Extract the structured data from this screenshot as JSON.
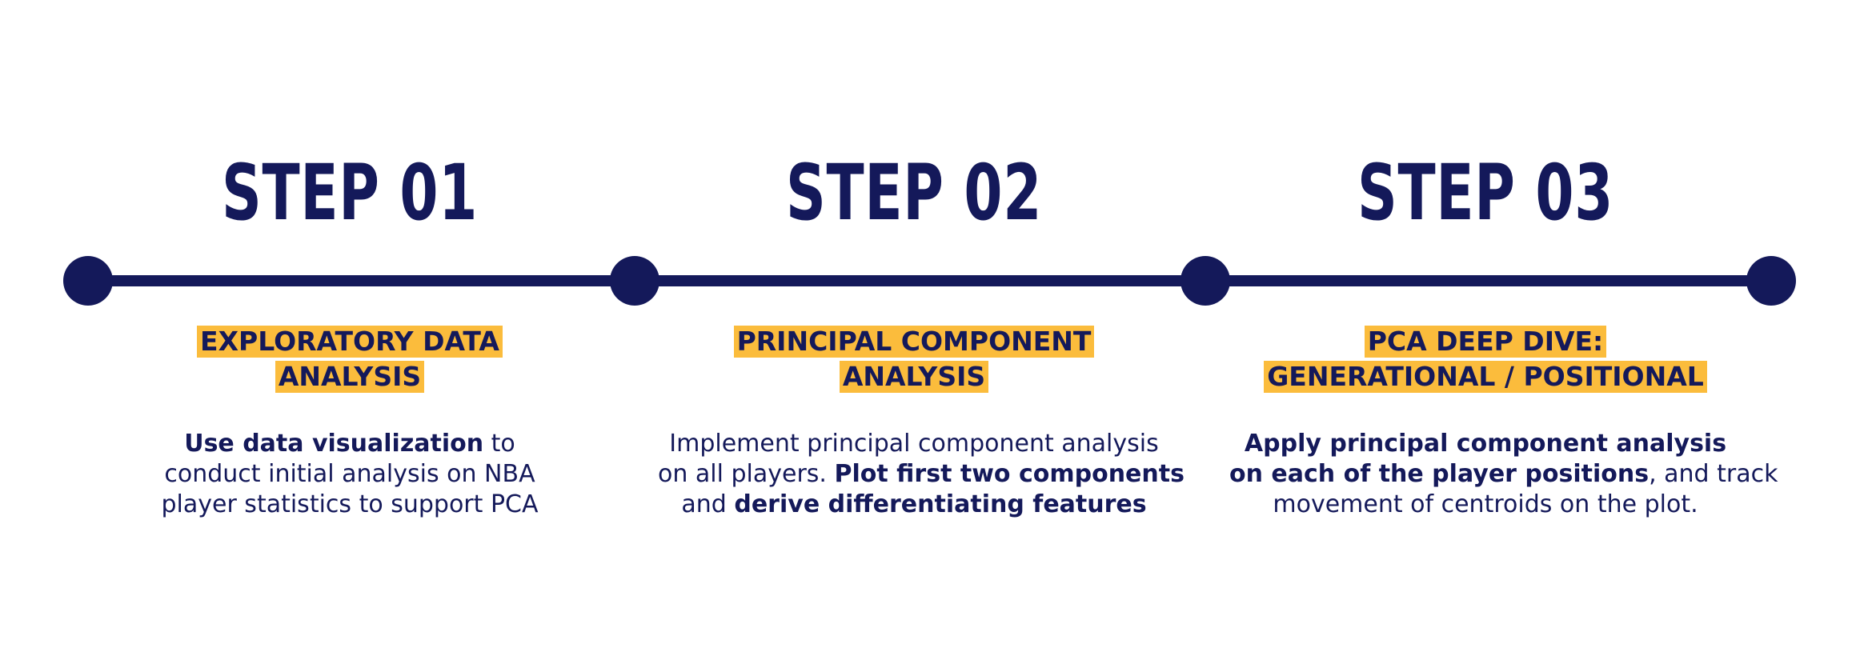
{
  "colors": {
    "navy": "#14195a",
    "accent": "#fbbc3c",
    "background": "#ffffff"
  },
  "steps": [
    {
      "title": "STEP 01",
      "subtitle_lines": [
        "EXPLORATORY DATA",
        "ANALYSIS"
      ],
      "desc": {
        "l1_bold": "Use data visualization",
        "l1_rest": " to",
        "l2": "conduct initial analysis on NBA",
        "l3": "player statistics to support PCA"
      }
    },
    {
      "title": "STEP 02",
      "subtitle_lines": [
        "PRINCIPAL COMPONENT",
        "ANALYSIS"
      ],
      "desc": {
        "l1": "Implement principal component analysis",
        "l2_plain": "on all players. ",
        "l2_bold": "Plot first two components",
        "l3_plain": "and ",
        "l3_bold": "derive differentiating features"
      }
    },
    {
      "title": "STEP 03",
      "subtitle_lines": [
        "PCA DEEP DIVE:",
        "GENERATIONAL / POSITIONAL"
      ],
      "desc": {
        "l1_bold": "Apply principal component analysis",
        "l2_bold": "on each of the player positions",
        "l2_rest": ", and track",
        "l3": "movement of centroids on the plot."
      }
    }
  ]
}
